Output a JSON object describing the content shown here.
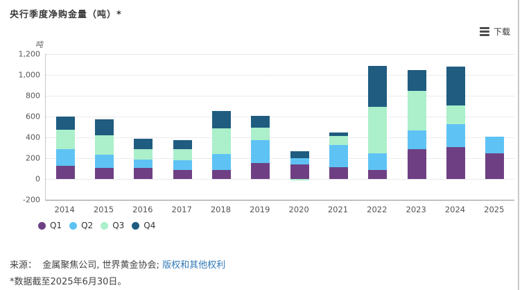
{
  "header": {
    "title": "央行季度净购金量（吨）*"
  },
  "toolbar": {
    "download_label": "下载"
  },
  "chart_data": {
    "type": "bar",
    "stacked": true,
    "title": "央行季度净购金量（吨）*",
    "unit_label": "吨",
    "xlabel": "",
    "ylabel": "吨",
    "ylim": [
      -200,
      1200
    ],
    "ytick_step": 200,
    "grid": "horizontal-dotted",
    "legend_position": "bottom-left",
    "categories": [
      "2014",
      "2015",
      "2016",
      "2017",
      "2018",
      "2019",
      "2020",
      "2021",
      "2022",
      "2023",
      "2024",
      "2025"
    ],
    "series": [
      {
        "name": "Q1",
        "color": "#6e4083",
        "values": [
          130,
          110,
          110,
          85,
          85,
          155,
          140,
          115,
          85,
          290,
          310,
          245
        ]
      },
      {
        "name": "Q2",
        "color": "#5ec3f4",
        "values": [
          155,
          125,
          80,
          95,
          155,
          220,
          60,
          210,
          160,
          175,
          215,
          165
        ]
      },
      {
        "name": "Q3",
        "color": "#abefcb",
        "values": [
          190,
          185,
          95,
          105,
          250,
          120,
          -10,
          90,
          450,
          380,
          185,
          0
        ]
      },
      {
        "name": "Q4",
        "color": "#1f5c80",
        "values": [
          125,
          155,
          105,
          90,
          165,
          110,
          65,
          35,
          390,
          200,
          370,
          0
        ]
      }
    ]
  },
  "footer": {
    "source_prefix": "来源：",
    "source_text": "金属聚焦公司, 世界黄金协会; ",
    "rights_link_label": "版权和其他权利",
    "footnote": "*数据截至2025年6月30日。"
  }
}
